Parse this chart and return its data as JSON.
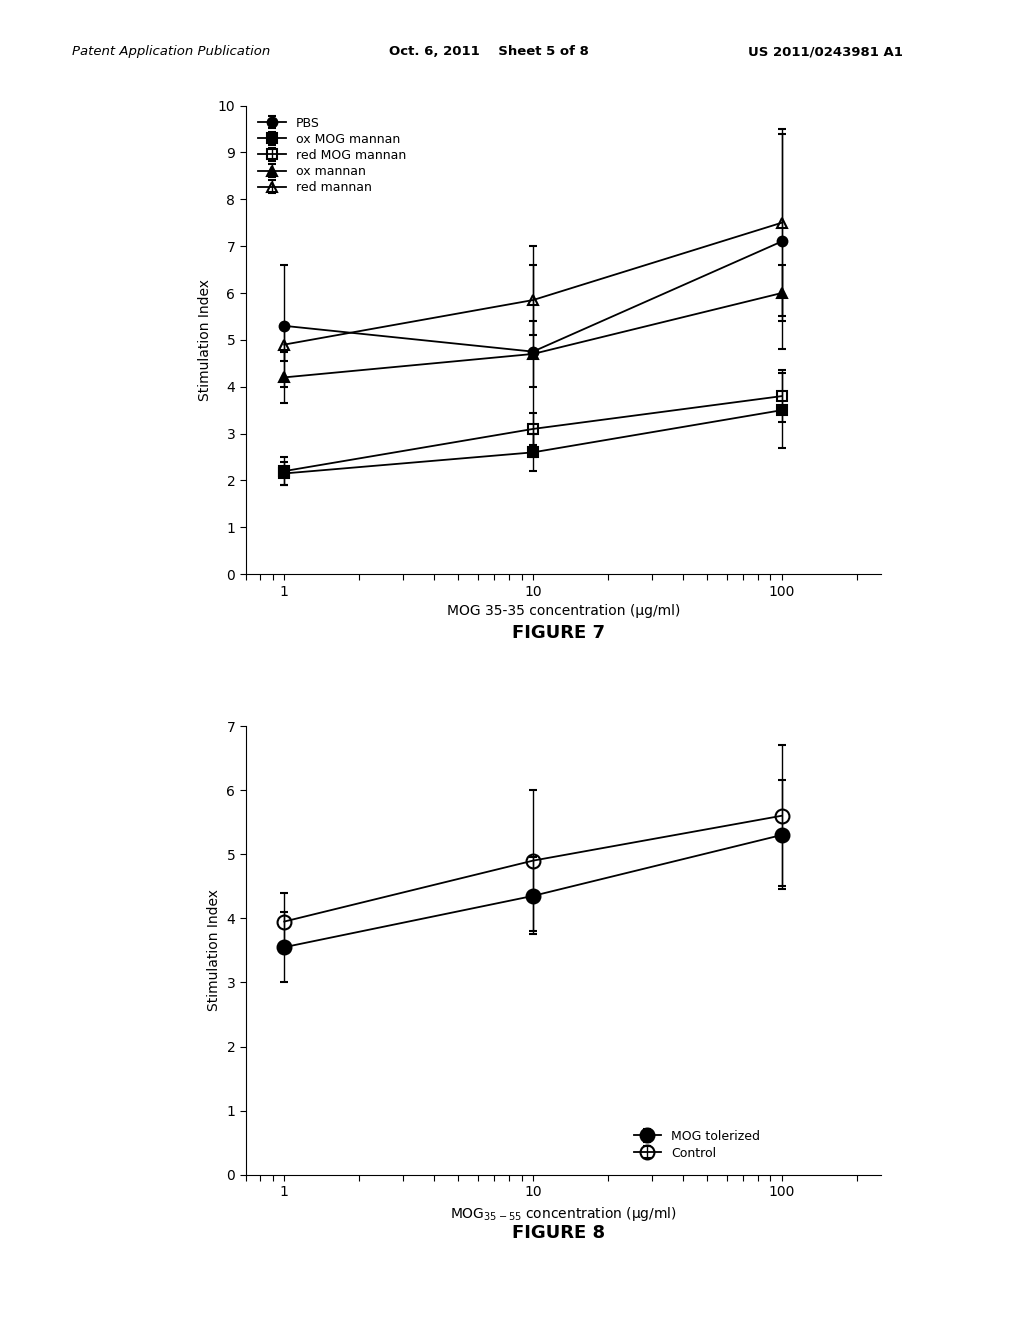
{
  "fig7": {
    "x": [
      1,
      10,
      100
    ],
    "series": {
      "PBS": {
        "y": [
          5.3,
          4.75,
          7.1
        ],
        "yerr": [
          1.3,
          2.25,
          2.3
        ],
        "marker": "o",
        "fillstyle": "full",
        "color": "#000000",
        "linestyle": "-"
      },
      "ox MOG mannan": {
        "y": [
          2.15,
          2.6,
          3.5
        ],
        "yerr": [
          0.25,
          0.4,
          0.8
        ],
        "marker": "s",
        "fillstyle": "full",
        "color": "#000000",
        "linestyle": "-"
      },
      "red MOG mannan": {
        "y": [
          2.2,
          3.1,
          3.8
        ],
        "yerr": [
          0.3,
          0.35,
          0.55
        ],
        "marker": "s",
        "fillstyle": "none",
        "color": "#000000",
        "linestyle": "-"
      },
      "ox mannan": {
        "y": [
          4.2,
          4.7,
          6.0
        ],
        "yerr": [
          0.55,
          0.7,
          0.6
        ],
        "marker": "^",
        "fillstyle": "full",
        "color": "#000000",
        "linestyle": "-"
      },
      "red mannan": {
        "y": [
          4.9,
          5.85,
          7.5
        ],
        "yerr": [
          0.35,
          0.75,
          2.0
        ],
        "marker": "^",
        "fillstyle": "none",
        "color": "#000000",
        "linestyle": "-"
      }
    },
    "ylabel": "Stimulation Index",
    "xlabel": "MOG 35-35 concentration (µg/ml)",
    "ylim": [
      0,
      10
    ],
    "yticks": [
      0,
      1,
      2,
      3,
      4,
      5,
      6,
      7,
      8,
      9,
      10
    ],
    "xticks": [
      1,
      10,
      100
    ],
    "figure_label": "FIGURE 7"
  },
  "fig8": {
    "x": [
      1,
      10,
      100
    ],
    "series": {
      "MOG tolerized": {
        "y": [
          3.55,
          4.35,
          5.3
        ],
        "yerr": [
          0.55,
          0.6,
          0.85
        ],
        "marker": "o",
        "fillstyle": "full",
        "color": "#000000",
        "linestyle": "-"
      },
      "Control": {
        "y": [
          3.95,
          4.9,
          5.6
        ],
        "yerr": [
          0.45,
          1.1,
          1.1
        ],
        "marker": "o",
        "fillstyle": "none",
        "color": "#000000",
        "linestyle": "-"
      }
    },
    "ylabel": "Stimulation Index",
    "xlabel": "MOG$_{35-55}$ concentration (µg/ml)",
    "ylim": [
      0,
      7
    ],
    "yticks": [
      0,
      1,
      2,
      3,
      4,
      5,
      6,
      7
    ],
    "xticks": [
      1,
      10,
      100
    ],
    "figure_label": "FIGURE 8"
  },
  "header_left": "Patent Application Publication",
  "header_center": "Oct. 6, 2011    Sheet 5 of 8",
  "header_right": "US 2011/0243981 A1",
  "background_color": "#ffffff",
  "text_color": "#000000"
}
